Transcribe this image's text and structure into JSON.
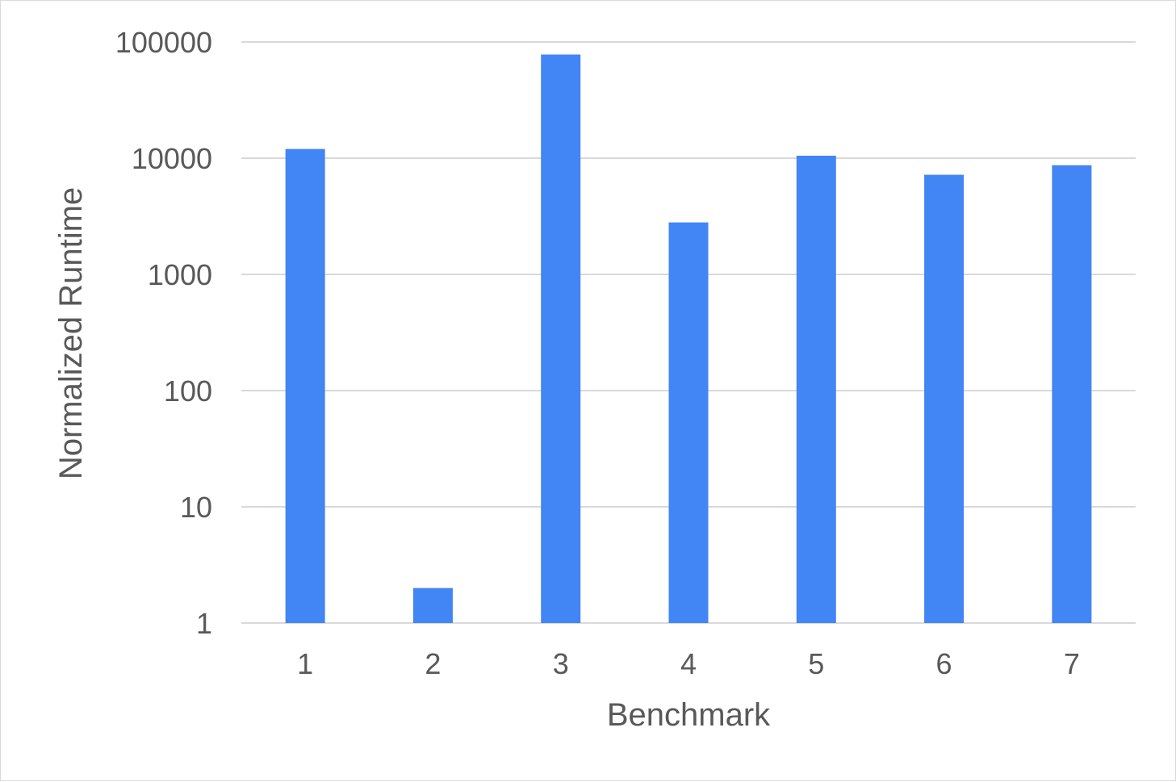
{
  "chart_data": {
    "type": "bar",
    "title": "",
    "xlabel": "Benchmark",
    "ylabel": "Normalized Runtime",
    "categories": [
      "1",
      "2",
      "3",
      "4",
      "5",
      "6",
      "7"
    ],
    "values": [
      12000,
      2,
      78000,
      2800,
      10500,
      7200,
      8700
    ],
    "yscale": "log",
    "ylim": [
      1,
      100000
    ],
    "yticks": [
      1,
      10,
      100,
      1000,
      10000,
      100000
    ],
    "ytick_labels": [
      "1",
      "10",
      "100",
      "1000",
      "10000",
      "100000"
    ],
    "grid": true,
    "legend": "none",
    "bar_color": "#4285f4",
    "grid_color": "#d9d9d9",
    "text_color": "#595959"
  }
}
